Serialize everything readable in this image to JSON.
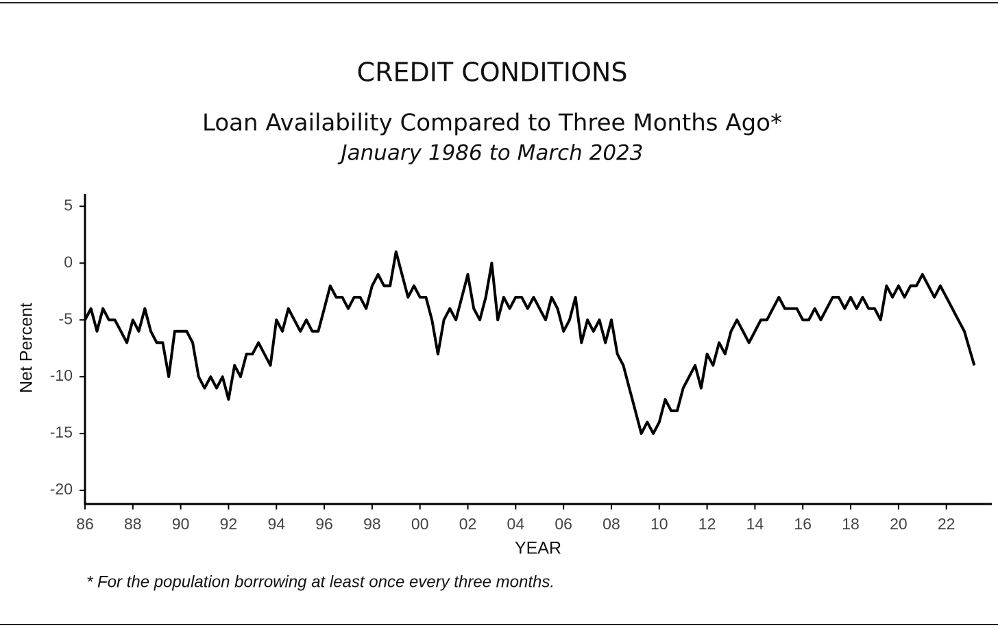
{
  "chart_data": {
    "type": "line",
    "title": "CREDIT CONDITIONS",
    "subtitle": "Loan Availability Compared to Three Months Ago*",
    "date_range": "January 1986 to March 2023",
    "x_label": "YEAR",
    "y_label": "Net Percent",
    "footnote": "* For the population borrowing at least once every three months.",
    "x": [
      1986,
      1986.25,
      1986.5,
      1986.75,
      1987,
      1987.25,
      1987.5,
      1987.75,
      1988,
      1988.25,
      1988.5,
      1988.75,
      1989,
      1989.25,
      1989.5,
      1989.75,
      1990,
      1990.25,
      1990.5,
      1990.75,
      1991,
      1991.25,
      1991.5,
      1991.75,
      1992,
      1992.25,
      1992.5,
      1992.75,
      1993,
      1993.25,
      1993.5,
      1993.75,
      1994,
      1994.25,
      1994.5,
      1994.75,
      1995,
      1995.25,
      1995.5,
      1995.75,
      1996,
      1996.25,
      1996.5,
      1996.75,
      1997,
      1997.25,
      1997.5,
      1997.75,
      1998,
      1998.25,
      1998.5,
      1998.75,
      1999,
      1999.25,
      1999.5,
      1999.75,
      2000,
      2000.25,
      2000.5,
      2000.75,
      2001,
      2001.25,
      2001.5,
      2001.75,
      2002,
      2002.25,
      2002.5,
      2002.75,
      2003,
      2003.25,
      2003.5,
      2003.75,
      2004,
      2004.25,
      2004.5,
      2004.75,
      2005,
      2005.25,
      2005.5,
      2005.75,
      2006,
      2006.25,
      2006.5,
      2006.75,
      2007,
      2007.25,
      2007.5,
      2007.75,
      2008,
      2008.25,
      2008.5,
      2008.75,
      2009,
      2009.25,
      2009.5,
      2009.75,
      2010,
      2010.25,
      2010.5,
      2010.75,
      2011,
      2011.25,
      2011.5,
      2011.75,
      2012,
      2012.25,
      2012.5,
      2012.75,
      2013,
      2013.25,
      2013.5,
      2013.75,
      2014,
      2014.25,
      2014.5,
      2014.75,
      2015,
      2015.25,
      2015.5,
      2015.75,
      2016,
      2016.25,
      2016.5,
      2016.75,
      2017,
      2017.25,
      2017.5,
      2017.75,
      2018,
      2018.25,
      2018.5,
      2018.75,
      2019,
      2019.25,
      2019.5,
      2019.75,
      2020,
      2020.25,
      2020.5,
      2020.75,
      2021,
      2021.25,
      2021.5,
      2021.75,
      2022,
      2022.25,
      2022.5,
      2022.75,
      2023.167
    ],
    "series": [
      {
        "name": "Net Percent",
        "color": "#000000",
        "values": [
          -5,
          -4,
          -6,
          -4,
          -5,
          -5,
          -6,
          -7,
          -5,
          -6,
          -4,
          -6,
          -7,
          -7,
          -10,
          -6,
          -6,
          -6,
          -7,
          -10,
          -11,
          -10,
          -11,
          -10,
          -12,
          -9,
          -10,
          -8,
          -8,
          -7,
          -8,
          -9,
          -5,
          -6,
          -4,
          -5,
          -6,
          -5,
          -6,
          -6,
          -4,
          -2,
          -3,
          -3,
          -4,
          -3,
          -3,
          -4,
          -2,
          -1,
          -2,
          -2,
          1,
          -1,
          -3,
          -2,
          -3,
          -3,
          -5,
          -8,
          -5,
          -4,
          -5,
          -3,
          -1,
          -4,
          -5,
          -3,
          0,
          -5,
          -3,
          -4,
          -3,
          -3,
          -4,
          -3,
          -4,
          -5,
          -3,
          -4,
          -6,
          -5,
          -3,
          -7,
          -5,
          -6,
          -5,
          -7,
          -5,
          -8,
          -9,
          -11,
          -13,
          -15,
          -14,
          -15,
          -14,
          -12,
          -13,
          -13,
          -11,
          -10,
          -9,
          -11,
          -8,
          -9,
          -7,
          -8,
          -6,
          -5,
          -6,
          -7,
          -6,
          -5,
          -5,
          -4,
          -3,
          -4,
          -4,
          -4,
          -5,
          -5,
          -4,
          -5,
          -4,
          -3,
          -3,
          -4,
          -3,
          -4,
          -3,
          -4,
          -4,
          -5,
          -2,
          -3,
          -2,
          -3,
          -2,
          -2,
          -1,
          -2,
          -3,
          -2,
          -3,
          -4,
          -5,
          -6,
          -9
        ]
      }
    ],
    "xlim": [
      1986,
      2023.9
    ],
    "xticks": [
      {
        "value": 1986,
        "label": "86"
      },
      {
        "value": 1988,
        "label": "88"
      },
      {
        "value": 1990,
        "label": "90"
      },
      {
        "value": 1992,
        "label": "92"
      },
      {
        "value": 1994,
        "label": "94"
      },
      {
        "value": 1996,
        "label": "96"
      },
      {
        "value": 1998,
        "label": "98"
      },
      {
        "value": 2000,
        "label": "00"
      },
      {
        "value": 2002,
        "label": "02"
      },
      {
        "value": 2004,
        "label": "04"
      },
      {
        "value": 2006,
        "label": "06"
      },
      {
        "value": 2008,
        "label": "08"
      },
      {
        "value": 2010,
        "label": "10"
      },
      {
        "value": 2012,
        "label": "12"
      },
      {
        "value": 2014,
        "label": "14"
      },
      {
        "value": 2016,
        "label": "16"
      },
      {
        "value": 2018,
        "label": "18"
      },
      {
        "value": 2020,
        "label": "20"
      },
      {
        "value": 2022,
        "label": "22"
      }
    ],
    "ylim": [
      -21.2,
      6.1
    ],
    "yticks": [
      5,
      0,
      -5,
      -10,
      -15,
      -20
    ],
    "grid": false
  }
}
